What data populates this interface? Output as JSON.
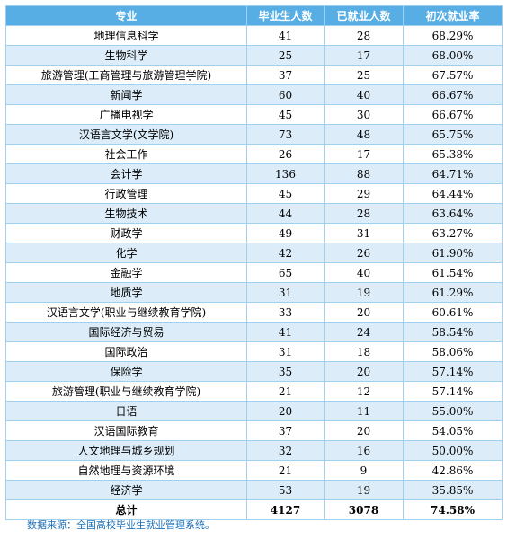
{
  "headers": [
    "专业",
    "毕业生人数",
    "已就业人数",
    "初次就业率"
  ],
  "rows": [
    [
      "地理信息科学",
      "41",
      "28",
      "68.29%"
    ],
    [
      "生物科学",
      "25",
      "17",
      "68.00%"
    ],
    [
      "旅游管理(工商管理与旅游管理学院)",
      "37",
      "25",
      "67.57%"
    ],
    [
      "新闻学",
      "60",
      "40",
      "66.67%"
    ],
    [
      "广播电视学",
      "45",
      "30",
      "66.67%"
    ],
    [
      "汉语言文学(文学院)",
      "73",
      "48",
      "65.75%"
    ],
    [
      "社会工作",
      "26",
      "17",
      "65.38%"
    ],
    [
      "会计学",
      "136",
      "88",
      "64.71%"
    ],
    [
      "行政管理",
      "45",
      "29",
      "64.44%"
    ],
    [
      "生物技术",
      "44",
      "28",
      "63.64%"
    ],
    [
      "财政学",
      "49",
      "31",
      "63.27%"
    ],
    [
      "化学",
      "42",
      "26",
      "61.90%"
    ],
    [
      "金融学",
      "65",
      "40",
      "61.54%"
    ],
    [
      "地质学",
      "31",
      "19",
      "61.29%"
    ],
    [
      "汉语言文学(职业与继续教育学院)",
      "33",
      "20",
      "60.61%"
    ],
    [
      "国际经济与贸易",
      "41",
      "24",
      "58.54%"
    ],
    [
      "国际政治",
      "31",
      "18",
      "58.06%"
    ],
    [
      "保险学",
      "35",
      "20",
      "57.14%"
    ],
    [
      "旅游管理(职业与继续教育学院)",
      "21",
      "12",
      "57.14%"
    ],
    [
      "日语",
      "20",
      "11",
      "55.00%"
    ],
    [
      "汉语国际教育",
      "37",
      "20",
      "54.05%"
    ],
    [
      "人文地理与城乡规划",
      "32",
      "16",
      "50.00%"
    ],
    [
      "自然地理与资源环境",
      "21",
      "9",
      "42.86%"
    ],
    [
      "经济学",
      "53",
      "19",
      "35.85%"
    ]
  ],
  "total": [
    "总计",
    "4127",
    "3078",
    "74.58%"
  ],
  "source": "数据来源：全国高校毕业生就业管理系统。",
  "colors": {
    "header_bg": "#56aee4",
    "stripe": "#dcedf9",
    "border": "#9fd1ef",
    "source_text": "#1a6fb5"
  }
}
